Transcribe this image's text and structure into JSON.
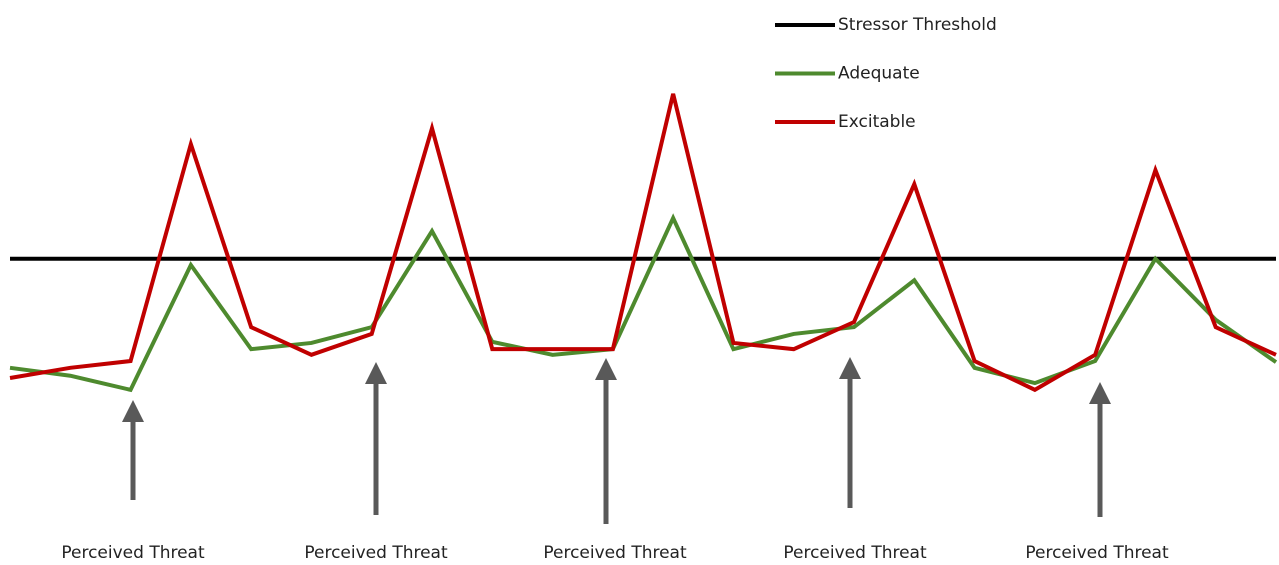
{
  "chart_data": {
    "type": "line",
    "x": [
      0,
      1,
      2,
      3,
      4,
      5,
      6,
      7,
      8,
      9,
      10,
      11,
      12,
      13,
      14,
      15,
      16,
      17,
      18,
      19,
      20,
      21
    ],
    "xlim": [
      0,
      21
    ],
    "ylim": [
      0,
      100
    ],
    "series": [
      {
        "name": "Stressor Threshold",
        "color": "#000000",
        "values": [
          54.2,
          54.2,
          54.2,
          54.2,
          54.2,
          54.2,
          54.2,
          54.2,
          54.2,
          54.2,
          54.2,
          54.2,
          54.2,
          54.2,
          54.2,
          54.2,
          54.2,
          54.2,
          54.2,
          54.2,
          54.2,
          54.2
        ]
      },
      {
        "name": "Adequate",
        "color": "#4e8a2e",
        "values": [
          34.9,
          33.5,
          31.0,
          53.1,
          38.2,
          39.3,
          42.1,
          59.1,
          39.5,
          37.2,
          38.2,
          61.4,
          38.2,
          40.9,
          42.1,
          50.4,
          34.9,
          32.2,
          36.1,
          54.2,
          43.4,
          35.9
        ]
      },
      {
        "name": "Excitable",
        "color": "#c00000",
        "values": [
          33.1,
          34.9,
          36.1,
          74.5,
          42.1,
          37.2,
          40.9,
          77.3,
          38.2,
          38.2,
          38.2,
          83.4,
          39.3,
          38.2,
          43.0,
          67.4,
          36.1,
          31.0,
          37.2,
          69.9,
          42.1,
          37.2
        ]
      }
    ],
    "annotations": [
      "Perceived Threat",
      "Perceived Threat",
      "Perceived Threat",
      "Perceived Threat",
      "Perceived Threat"
    ],
    "legend": "top-right"
  }
}
